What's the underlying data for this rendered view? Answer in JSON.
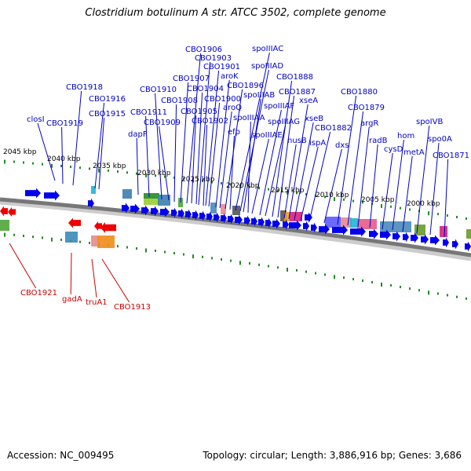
{
  "title": "Clostridium botulinum A str. ATCC 3502, complete genome",
  "footer": {
    "accession": "Accession: NC_009495",
    "summary": "Topology: circular; Length: 3,886,916 bp; Genes: 3,686"
  },
  "colors": {
    "forward_gene": "#0000ee",
    "reverse_gene": "#ee0000",
    "forward_label": "#0000cc",
    "reverse_label": "#cc0000",
    "tick": "#228b22",
    "backbone": "#777777"
  },
  "scale_labels": [
    "2045 kbp",
    "2040 kbp",
    "2035 kbp",
    "2030 kbp",
    "2025 kbp",
    "2020 kbp",
    "2015 kbp",
    "2010 kbp",
    "2005 kbp",
    "2000 kbp"
  ],
  "forward_labels": [
    "closI",
    "CBO1919",
    "CBO1918",
    "CBO1916",
    "CBO1915",
    "dapF",
    "CBO1911",
    "CBO1910",
    "CBO1909",
    "CBO1908",
    "CBO1907",
    "CBO1906",
    "CBO1905",
    "CBO1904",
    "CBO1903",
    "CBO1902",
    "CBO1901",
    "CBO1900",
    "aroK",
    "aroQ",
    "CBO1896",
    "efp",
    "spoIIIAC",
    "spoIIIAD",
    "spoIIIAB",
    "spoIIIAA",
    "spoIIIAE",
    "spoIIIAF",
    "spoIIIAG",
    "CBO1888",
    "CBO1887",
    "nusB",
    "xseA",
    "xseB",
    "ispA",
    "CBO1882",
    "dxs",
    "CBO1880",
    "CBO1879",
    "argR",
    "radB",
    "cysD",
    "hom",
    "metA",
    "spoIVB",
    "spo0A",
    "CBO1871"
  ],
  "reverse_labels": [
    "CBO1921",
    "gadA",
    "truA1",
    "CBO1913"
  ]
}
